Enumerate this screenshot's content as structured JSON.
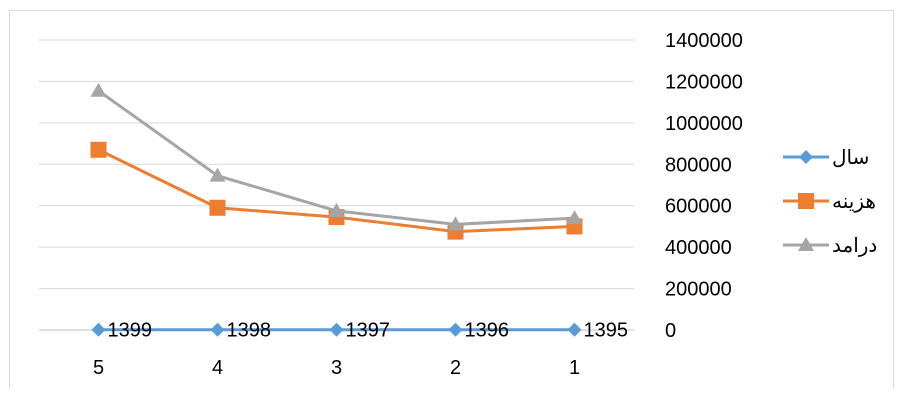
{
  "chart_data": {
    "type": "line",
    "categories": [
      "5",
      "4",
      "3",
      "2",
      "1"
    ],
    "ylim": [
      0,
      1400000
    ],
    "yticks": [
      0,
      200000,
      400000,
      600000,
      800000,
      1000000,
      1200000,
      1400000
    ],
    "grid": true,
    "legend_position": "right",
    "series": [
      {
        "name": "سال",
        "color": "#5b9bd5",
        "marker": "diamond",
        "values": [
          1399,
          1398,
          1397,
          1396,
          1395
        ],
        "data_labels": [
          "1399",
          "1398",
          "1397",
          "1396",
          "1395"
        ]
      },
      {
        "name": "هزینه",
        "color": "#ed7d31",
        "marker": "square",
        "values": [
          870000,
          590000,
          545000,
          475000,
          500000
        ]
      },
      {
        "name": "درامد",
        "color": "#a5a5a5",
        "marker": "triangle",
        "values": [
          1155000,
          745000,
          575000,
          510000,
          540000
        ]
      }
    ]
  }
}
